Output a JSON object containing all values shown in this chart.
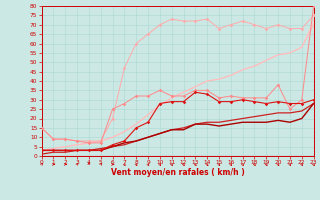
{
  "xlabel": "Vent moyen/en rafales ( km/h )",
  "bg_color": "#cce8e4",
  "grid_color": "#aad8d4",
  "xmin": 0,
  "xmax": 23,
  "ymin": 0,
  "ymax": 80,
  "yticks": [
    0,
    5,
    10,
    15,
    20,
    25,
    30,
    35,
    40,
    45,
    50,
    55,
    60,
    65,
    70,
    75,
    80
  ],
  "xticks": [
    0,
    1,
    2,
    3,
    4,
    5,
    6,
    7,
    8,
    9,
    10,
    11,
    12,
    13,
    14,
    15,
    16,
    17,
    18,
    19,
    20,
    21,
    22,
    23
  ],
  "hours": [
    0,
    1,
    2,
    3,
    4,
    5,
    6,
    7,
    8,
    9,
    10,
    11,
    12,
    13,
    14,
    15,
    16,
    17,
    18,
    19,
    20,
    21,
    22,
    23
  ],
  "line_rafales1": [
    15,
    9,
    9,
    8,
    8,
    8,
    20,
    47,
    60,
    65,
    70,
    73,
    72,
    72,
    73,
    68,
    70,
    72,
    70,
    68,
    70,
    68,
    68,
    75
  ],
  "line_rafales1_color": "#ffaaaa",
  "line_rafales2": [
    15,
    9,
    9,
    8,
    7,
    7,
    25,
    28,
    32,
    32,
    35,
    32,
    32,
    35,
    35,
    31,
    32,
    31,
    31,
    31,
    38,
    25,
    30,
    80
  ],
  "line_rafales2_color": "#ff8888",
  "line_rafales_trend": [
    3,
    4,
    5,
    6,
    7,
    8,
    10,
    13,
    17,
    22,
    27,
    31,
    34,
    37,
    40,
    41,
    43,
    46,
    48,
    51,
    54,
    55,
    58,
    72
  ],
  "line_rafales_trend_color": "#ffcccc",
  "line_rafales_trend2": [
    3,
    4,
    5,
    6,
    7,
    8,
    10,
    13,
    17,
    22,
    27,
    31,
    34,
    37,
    40,
    41,
    43,
    46,
    48,
    51,
    54,
    55,
    58,
    70
  ],
  "line_rafales_trend2_color": "#ffbbbb",
  "line_moyen1": [
    3,
    3,
    3,
    3,
    3,
    3,
    6,
    8,
    15,
    18,
    28,
    29,
    29,
    34,
    33,
    29,
    29,
    30,
    29,
    28,
    29,
    28,
    28,
    30
  ],
  "line_moyen1_color": "#dd1111",
  "line_moyen2": [
    3,
    3,
    3,
    3,
    3,
    3,
    5,
    7,
    8,
    10,
    12,
    14,
    14,
    17,
    17,
    16,
    17,
    18,
    18,
    18,
    19,
    18,
    20,
    28
  ],
  "line_moyen2_color": "#aa0000",
  "line_moyen_trend": [
    1,
    2,
    2,
    3,
    3,
    4,
    5,
    6,
    8,
    10,
    12,
    14,
    15,
    17,
    18,
    18,
    19,
    20,
    21,
    22,
    23,
    23,
    24,
    28
  ],
  "line_moyen_trend_color": "#cc2222",
  "wind_dirs_deg": [
    225,
    270,
    270,
    225,
    180,
    225,
    270,
    315,
    315,
    315,
    315,
    315,
    315,
    315,
    315,
    315,
    315,
    315,
    315,
    315,
    315,
    315,
    315,
    315
  ]
}
